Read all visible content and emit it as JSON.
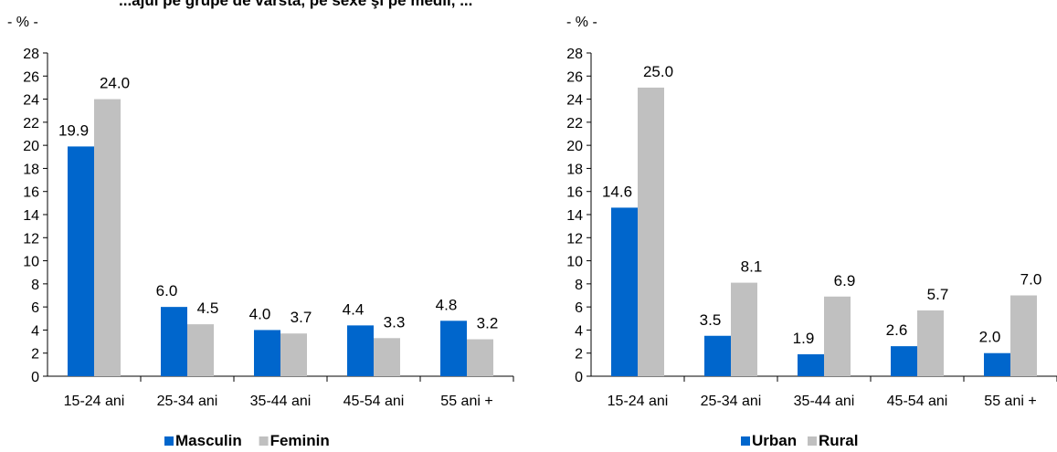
{
  "title": "...ajul pe grupe de vârstă, pe sexe şi pe medii, ...",
  "chart_data": [
    {
      "type": "bar",
      "unit_label": "- % -",
      "categories": [
        "15-24 ani",
        "25-34 ani",
        "35-44 ani",
        "45-54 ani",
        "55 ani +"
      ],
      "series": [
        {
          "name": "Masculin",
          "values": [
            19.9,
            6.0,
            4.0,
            4.4,
            4.8
          ],
          "value_labels": [
            "19.9",
            "6.0",
            "4.0",
            "4.4",
            "4.8"
          ],
          "color": "#0066CC"
        },
        {
          "name": "Feminin",
          "values": [
            24.0,
            4.5,
            3.7,
            3.3,
            3.2
          ],
          "value_labels": [
            "24.0",
            "4.5",
            "3.7",
            "3.3",
            "3.2"
          ],
          "color": "#C0C0C0"
        }
      ],
      "yticks": [
        0,
        2,
        4,
        6,
        8,
        10,
        12,
        14,
        16,
        18,
        20,
        22,
        24,
        26,
        28
      ],
      "ylim": [
        0,
        28
      ],
      "grid": false,
      "legend": "bottom"
    },
    {
      "type": "bar",
      "unit_label": "- % -",
      "categories": [
        "15-24 ani",
        "25-34 ani",
        "35-44 ani",
        "45-54 ani",
        "55 ani +"
      ],
      "series": [
        {
          "name": "Urban",
          "values": [
            14.6,
            3.5,
            1.9,
            2.6,
            2.0
          ],
          "value_labels": [
            "14.6",
            "3.5",
            "1.9",
            "2.6",
            "2.0"
          ],
          "color": "#0066CC"
        },
        {
          "name": "Rural",
          "values": [
            25.0,
            8.1,
            6.9,
            5.7,
            7.0
          ],
          "value_labels": [
            "25.0",
            "8.1",
            "6.9",
            "5.7",
            "7.0"
          ],
          "color": "#C0C0C0"
        }
      ],
      "yticks": [
        0,
        2,
        4,
        6,
        8,
        10,
        12,
        14,
        16,
        18,
        20,
        22,
        24,
        26,
        28
      ],
      "ylim": [
        0,
        28
      ],
      "grid": false,
      "legend": "bottom"
    }
  ]
}
